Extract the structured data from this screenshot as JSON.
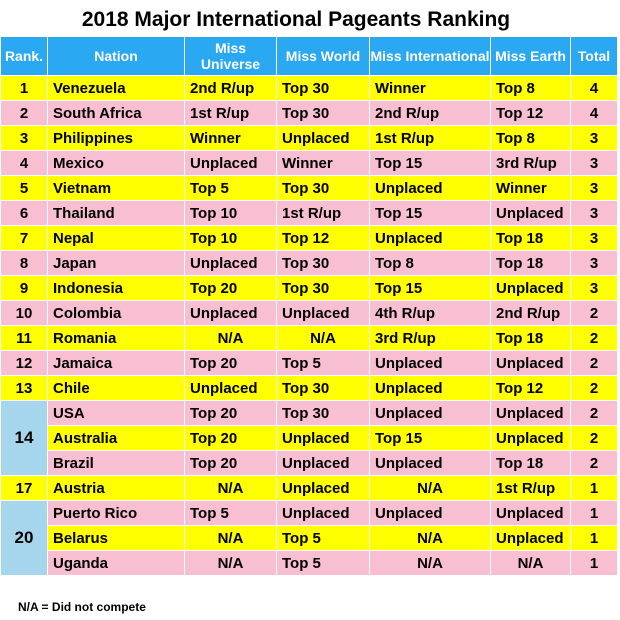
{
  "title": "2018 Major International Pageants Ranking",
  "headers": [
    "Rank.",
    "Nation",
    "Miss Universe",
    "Miss World",
    "Miss International",
    "Miss Earth",
    "Total"
  ],
  "rows": [
    {
      "rank": "1",
      "nation": "Venezuela",
      "universe": "2nd R/up",
      "world": "Top 30",
      "international": "Winner",
      "earth": "Top 8",
      "total": "4",
      "color": "yellow"
    },
    {
      "rank": "2",
      "nation": "South Africa",
      "universe": "1st R/up",
      "world": "Top 30",
      "international": "2nd R/up",
      "earth": "Top 12",
      "total": "4",
      "color": "pink"
    },
    {
      "rank": "3",
      "nation": "Philippines",
      "universe": "Winner",
      "world": "Unplaced",
      "international": "1st R/up",
      "earth": "Top 8",
      "total": "3",
      "color": "yellow"
    },
    {
      "rank": "4",
      "nation": "Mexico",
      "universe": "Unplaced",
      "world": "Winner",
      "international": "Top 15",
      "earth": "3rd R/up",
      "total": "3",
      "color": "pink"
    },
    {
      "rank": "5",
      "nation": "Vietnam",
      "universe": "Top 5",
      "world": "Top 30",
      "international": "Unplaced",
      "earth": "Winner",
      "total": "3",
      "color": "yellow"
    },
    {
      "rank": "6",
      "nation": "Thailand",
      "universe": "Top 10",
      "world": "1st R/up",
      "international": "Top 15",
      "earth": "Unplaced",
      "total": "3",
      "color": "pink"
    },
    {
      "rank": "7",
      "nation": "Nepal",
      "universe": "Top 10",
      "world": "Top 12",
      "international": "Unplaced",
      "earth": "Top 18",
      "total": "3",
      "color": "yellow"
    },
    {
      "rank": "8",
      "nation": "Japan",
      "universe": "Unplaced",
      "world": "Top 30",
      "international": "Top 8",
      "earth": "Top 18",
      "total": "3",
      "color": "pink"
    },
    {
      "rank": "9",
      "nation": "Indonesia",
      "universe": "Top 20",
      "world": "Top 30",
      "international": "Top 15",
      "earth": "Unplaced",
      "total": "3",
      "color": "yellow"
    },
    {
      "rank": "10",
      "nation": "Colombia",
      "universe": "Unplaced",
      "world": "Unplaced",
      "international": "4th R/up",
      "earth": "2nd R/up",
      "total": "2",
      "color": "pink"
    },
    {
      "rank": "11",
      "nation": "Romania",
      "universe": "N/A",
      "world": "N/A",
      "international": "3rd R/up",
      "earth": "Top 18",
      "total": "2",
      "color": "yellow"
    },
    {
      "rank": "12",
      "nation": "Jamaica",
      "universe": "Top 20",
      "world": "Top 5",
      "international": "Unplaced",
      "earth": "Unplaced",
      "total": "2",
      "color": "pink"
    },
    {
      "rank": "13",
      "nation": "Chile",
      "universe": "Unplaced",
      "world": "Top 30",
      "international": "Unplaced",
      "earth": "Top 12",
      "total": "2",
      "color": "yellow"
    },
    {
      "rank": "14",
      "nation": "USA",
      "universe": "Top 20",
      "world": "Top 30",
      "international": "Unplaced",
      "earth": "Unplaced",
      "total": "2",
      "color": "pink"
    },
    {
      "rank": "",
      "nation": "Australia",
      "universe": "Top 20",
      "world": "Unplaced",
      "international": "Top 15",
      "earth": "Unplaced",
      "total": "2",
      "color": "yellow"
    },
    {
      "rank": "",
      "nation": "Brazil",
      "universe": "Top 20",
      "world": "Unplaced",
      "international": "Unplaced",
      "earth": "Top 18",
      "total": "2",
      "color": "pink"
    },
    {
      "rank": "17",
      "nation": "Austria",
      "universe": "N/A",
      "world": "Unplaced",
      "international": "N/A",
      "earth": "1st R/up",
      "total": "1",
      "color": "yellow"
    },
    {
      "rank": "20",
      "nation": "Puerto Rico",
      "universe": "Top 5",
      "world": "Unplaced",
      "international": "Unplaced",
      "earth": "Unplaced",
      "total": "1",
      "color": "pink"
    },
    {
      "rank": "",
      "nation": "Belarus",
      "universe": "N/A",
      "world": "Top 5",
      "international": "N/A",
      "earth": "Unplaced",
      "total": "1",
      "color": "yellow"
    },
    {
      "rank": "",
      "nation": "Uganda",
      "universe": "N/A",
      "world": "Top 5",
      "international": "N/A",
      "earth": "N/A",
      "total": "1",
      "color": "pink"
    }
  ],
  "rank_spans": {
    "13": 3,
    "17": 3
  },
  "footnote": "N/A = Did not compete"
}
